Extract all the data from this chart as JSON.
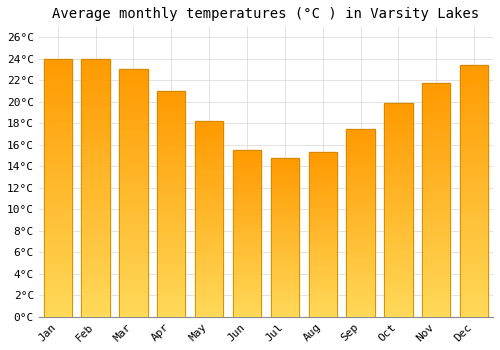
{
  "title": "Average monthly temperatures (°C ) in Varsity Lakes",
  "months": [
    "Jan",
    "Feb",
    "Mar",
    "Apr",
    "May",
    "Jun",
    "Jul",
    "Aug",
    "Sep",
    "Oct",
    "Nov",
    "Dec"
  ],
  "values": [
    24.0,
    24.0,
    23.0,
    21.0,
    18.2,
    15.5,
    14.8,
    15.3,
    17.5,
    19.9,
    21.7,
    23.4
  ],
  "bar_color_top": "#FFAA00",
  "bar_color_bottom": "#FFD060",
  "bar_edge_color": "#CC8800",
  "background_color": "#FFFFFF",
  "grid_color": "#DDDDDD",
  "ylim": [
    0,
    27
  ],
  "ytick_step": 2,
  "title_fontsize": 10,
  "tick_fontsize": 8,
  "font_family": "monospace"
}
